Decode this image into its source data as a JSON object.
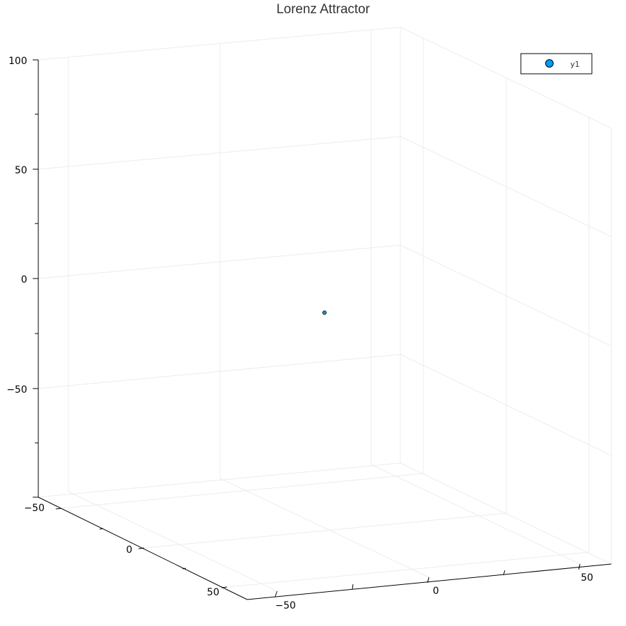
{
  "chart_data": {
    "type": "scatter",
    "title": "Lorenz Attractor",
    "xlim": [
      -70,
      70
    ],
    "ylim": [
      -70,
      70
    ],
    "zlim": [
      -100,
      100
    ],
    "x_ticks": [
      "−50",
      "0",
      "50"
    ],
    "y_ticks": [
      "−50",
      "0",
      "50"
    ],
    "z_ticks": [
      "−50",
      "0",
      "50",
      "100"
    ],
    "grid": true,
    "legend_position": "top-right",
    "series": [
      {
        "name": "y1",
        "color": "#009af9",
        "points": [
          {
            "x": 1,
            "y": 1,
            "z": 1
          }
        ]
      }
    ]
  }
}
